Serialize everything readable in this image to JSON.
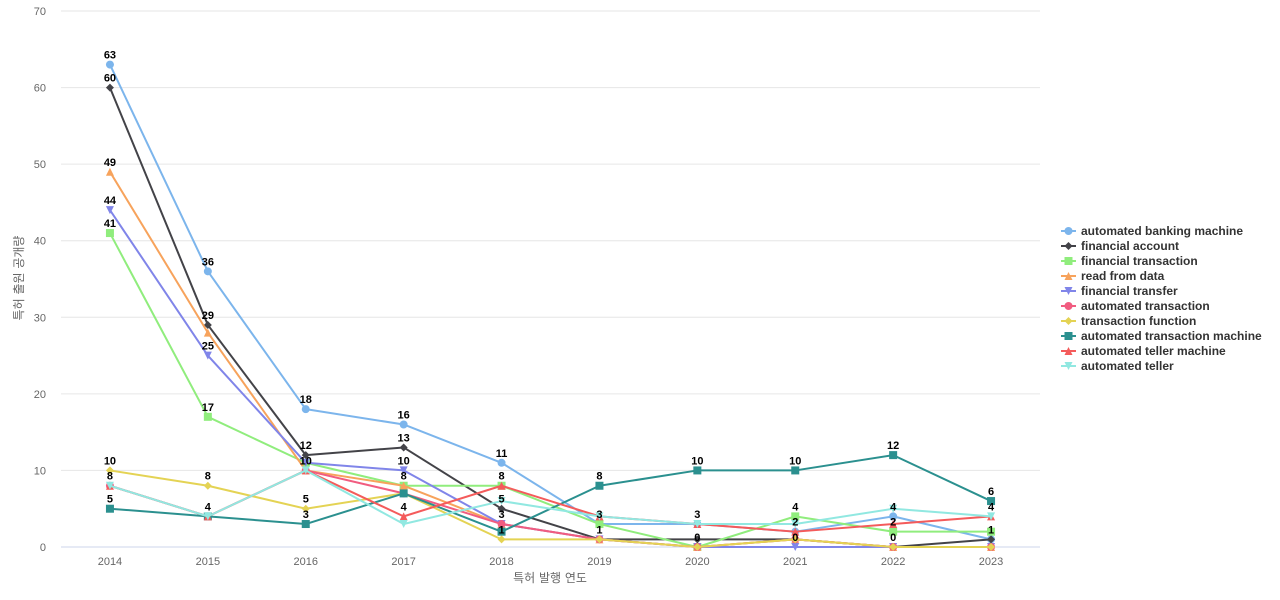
{
  "chart_data": {
    "type": "line",
    "title": "",
    "xlabel": "특허 발행 연도",
    "ylabel": "특허 출원 공개량",
    "ylim": [
      0,
      70
    ],
    "yticks": [
      0,
      10,
      20,
      30,
      40,
      50,
      60,
      70
    ],
    "x": [
      "2014",
      "2015",
      "2016",
      "2017",
      "2018",
      "2019",
      "2020",
      "2021",
      "2022",
      "2023"
    ],
    "grid": true,
    "legend_position": "right",
    "series": [
      {
        "name": "automated banking machine",
        "color": "#7cb5ec",
        "marker": "circle",
        "values": [
          63,
          36,
          18,
          16,
          11,
          3,
          3,
          2,
          4,
          1
        ]
      },
      {
        "name": "financial account",
        "color": "#434348",
        "marker": "diamond",
        "values": [
          60,
          29,
          12,
          13,
          5,
          1,
          1,
          1,
          0,
          1
        ]
      },
      {
        "name": "financial transaction",
        "color": "#90ed7d",
        "marker": "square",
        "values": [
          41,
          17,
          11,
          8,
          8,
          3,
          0,
          4,
          2,
          2
        ]
      },
      {
        "name": "read from data",
        "color": "#f7a35c",
        "marker": "triangle",
        "values": [
          49,
          28,
          10,
          8,
          3,
          1,
          0,
          1,
          0,
          0
        ]
      },
      {
        "name": "financial transfer",
        "color": "#8085e9",
        "marker": "triangle-down",
        "values": [
          44,
          25,
          11,
          10,
          3,
          1,
          0,
          0,
          0,
          0
        ]
      },
      {
        "name": "automated transaction",
        "color": "#f15c80",
        "marker": "circle",
        "values": [
          8,
          4,
          10,
          7,
          3,
          1,
          0,
          1,
          0,
          0
        ]
      },
      {
        "name": "transaction function",
        "color": "#e4d354",
        "marker": "diamond",
        "values": [
          10,
          8,
          5,
          7,
          1,
          1,
          0,
          1,
          0,
          0
        ]
      },
      {
        "name": "automated transaction machine",
        "color": "#2b908f",
        "marker": "square",
        "values": [
          5,
          4,
          3,
          7,
          2,
          8,
          10,
          10,
          12,
          6
        ]
      },
      {
        "name": "automated teller machine",
        "color": "#f45b5b",
        "marker": "triangle",
        "values": [
          8,
          4,
          10,
          4,
          8,
          4,
          3,
          2,
          3,
          4
        ]
      },
      {
        "name": "automated teller",
        "color": "#91e8e1",
        "marker": "triangle-down",
        "values": [
          8,
          4,
          10,
          3,
          6,
          4,
          3,
          3,
          5,
          4
        ]
      }
    ],
    "data_labels": [
      {
        "x": "2014",
        "value": 63
      },
      {
        "x": "2014",
        "value": 60
      },
      {
        "x": "2014",
        "value": 49
      },
      {
        "x": "2014",
        "value": 44
      },
      {
        "x": "2014",
        "value": 41
      },
      {
        "x": "2014",
        "value": 10
      },
      {
        "x": "2014",
        "value": 8
      },
      {
        "x": "2014",
        "value": 5
      },
      {
        "x": "2015",
        "value": 36
      },
      {
        "x": "2015",
        "value": 29
      },
      {
        "x": "2015",
        "value": 25
      },
      {
        "x": "2015",
        "value": 17
      },
      {
        "x": "2015",
        "value": 8
      },
      {
        "x": "2015",
        "value": 4
      },
      {
        "x": "2016",
        "value": 18
      },
      {
        "x": "2016",
        "value": 12
      },
      {
        "x": "2016",
        "value": 10
      },
      {
        "x": "2016",
        "value": 5
      },
      {
        "x": "2016",
        "value": 3
      },
      {
        "x": "2017",
        "value": 16
      },
      {
        "x": "2017",
        "value": 13
      },
      {
        "x": "2017",
        "value": 10
      },
      {
        "x": "2017",
        "value": 8
      },
      {
        "x": "2017",
        "value": 4
      },
      {
        "x": "2018",
        "value": 11
      },
      {
        "x": "2018",
        "value": 8
      },
      {
        "x": "2018",
        "value": 5
      },
      {
        "x": "2018",
        "value": 3
      },
      {
        "x": "2018",
        "value": 1
      },
      {
        "x": "2019",
        "value": 8
      },
      {
        "x": "2019",
        "value": 3
      },
      {
        "x": "2019",
        "value": 1
      },
      {
        "x": "2020",
        "value": 10
      },
      {
        "x": "2020",
        "value": 3
      },
      {
        "x": "2020",
        "value": 0
      },
      {
        "x": "2021",
        "value": 10
      },
      {
        "x": "2021",
        "value": 4
      },
      {
        "x": "2021",
        "value": 2
      },
      {
        "x": "2021",
        "value": 0
      },
      {
        "x": "2022",
        "value": 12
      },
      {
        "x": "2022",
        "value": 4
      },
      {
        "x": "2022",
        "value": 2
      },
      {
        "x": "2022",
        "value": 0
      },
      {
        "x": "2023",
        "value": 6
      },
      {
        "x": "2023",
        "value": 4
      },
      {
        "x": "2023",
        "value": 1
      }
    ]
  }
}
